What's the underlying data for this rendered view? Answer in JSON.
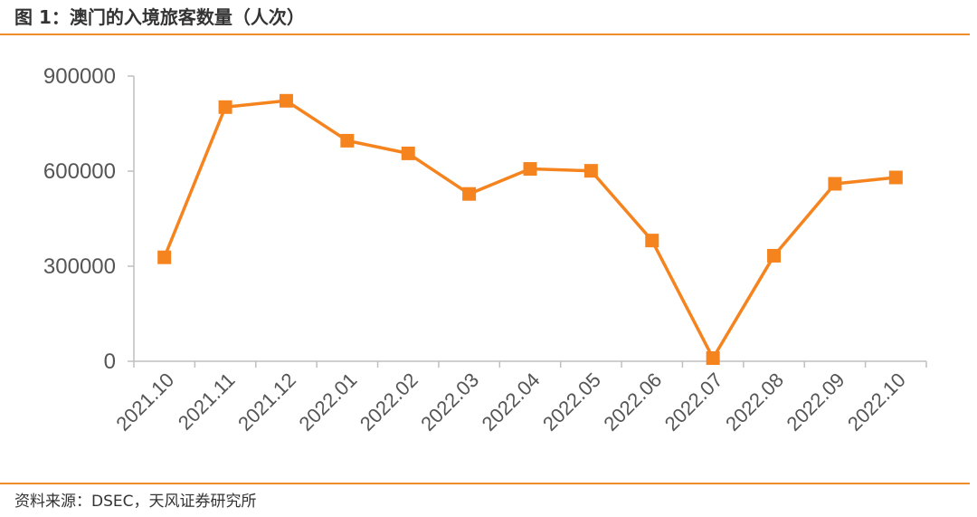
{
  "header": {
    "title": "图 1：澳门的入境旅客数量（人次）"
  },
  "footer": {
    "source": "资料来源：DSEC，天风证券研究所"
  },
  "colors": {
    "accent": "#F08C2A",
    "series": "#F5841F",
    "axis": "#BFBFBF",
    "text": "#555555"
  },
  "chart_data": {
    "type": "line",
    "title": "图 1：澳门的入境旅客数量（人次）",
    "categories": [
      "2021.10",
      "2021.11",
      "2021.12",
      "2022.01",
      "2022.02",
      "2022.03",
      "2022.04",
      "2022.05",
      "2022.06",
      "2022.07",
      "2022.08",
      "2022.09",
      "2022.10"
    ],
    "series": [
      {
        "name": "",
        "values": [
          328000,
          802000,
          822000,
          696000,
          656000,
          528000,
          607000,
          601000,
          381000,
          10000,
          333000,
          560000,
          580000
        ]
      }
    ],
    "ylim": [
      0,
      900000
    ],
    "yticks": [
      "0",
      "300000",
      "600000",
      "900000"
    ],
    "grid": false,
    "marker": "square"
  }
}
